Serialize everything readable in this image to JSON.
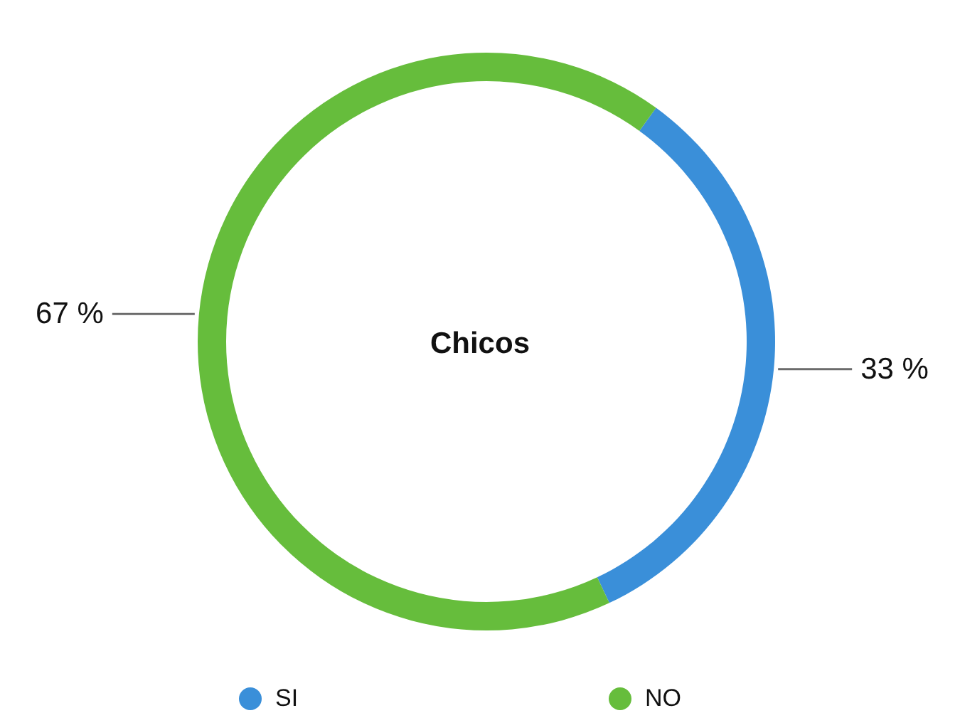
{
  "chart_data": {
    "type": "donut",
    "title": "Chicos",
    "categories": [
      "SI",
      "NO"
    ],
    "values": [
      33,
      67
    ],
    "colors": [
      "#3a8fd9",
      "#66bd3c"
    ],
    "value_labels": [
      "33 %",
      "67 %"
    ],
    "legend": "bottom"
  }
}
